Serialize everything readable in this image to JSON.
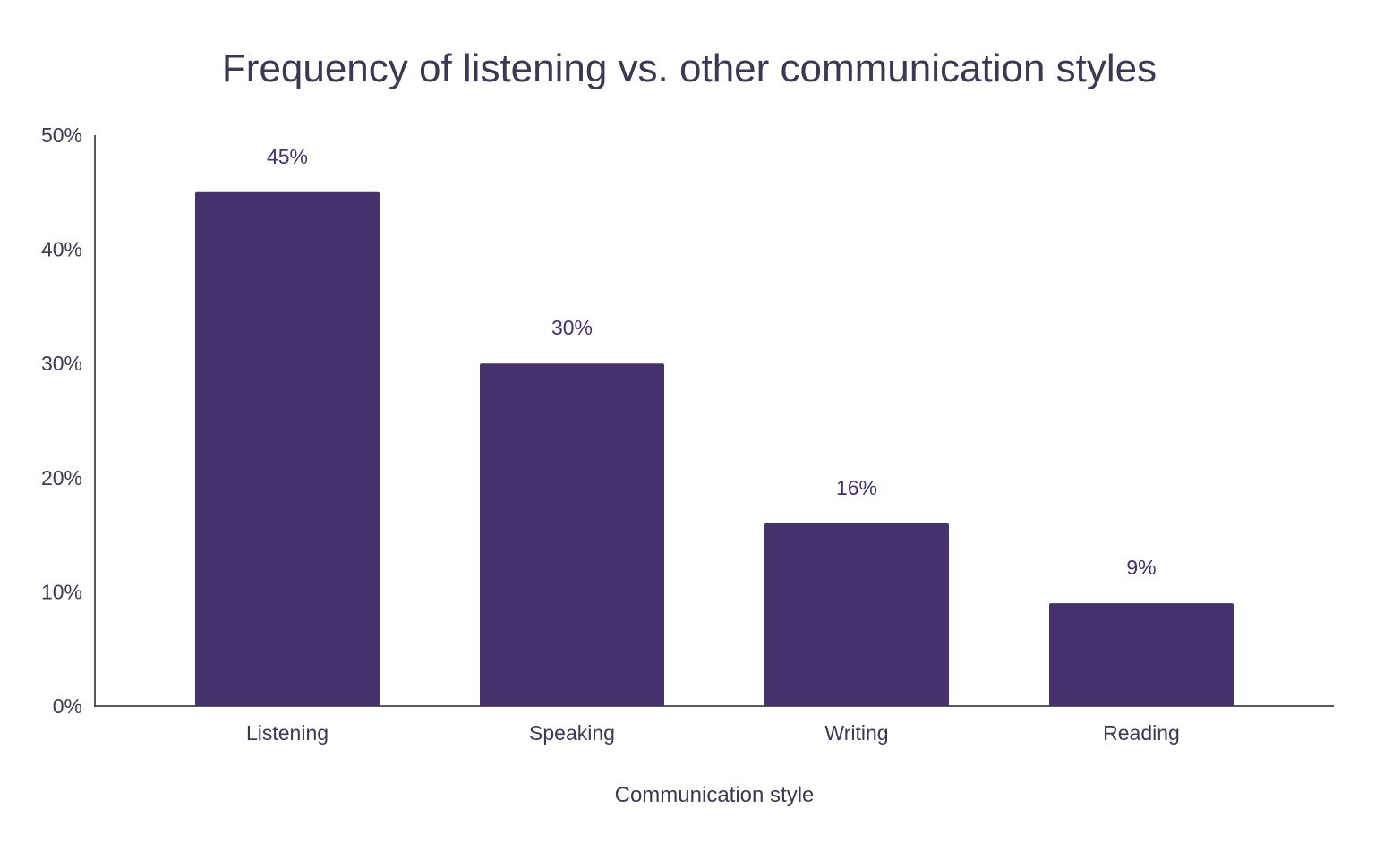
{
  "chart_data": {
    "type": "bar",
    "title": "Frequency of listening vs. other communication styles",
    "xlabel": "Communication style",
    "ylabel": "",
    "categories": [
      "Listening",
      "Speaking",
      "Writing",
      "Reading"
    ],
    "values": [
      45,
      30,
      16,
      9
    ],
    "data_labels": [
      "45%",
      "30%",
      "16%",
      "9%"
    ],
    "ylim": [
      0,
      50
    ],
    "yticks": [
      "0%",
      "10%",
      "20%",
      "30%",
      "40%",
      "50%"
    ],
    "grid": false,
    "legend": "none",
    "bar_color": "#45316b"
  }
}
